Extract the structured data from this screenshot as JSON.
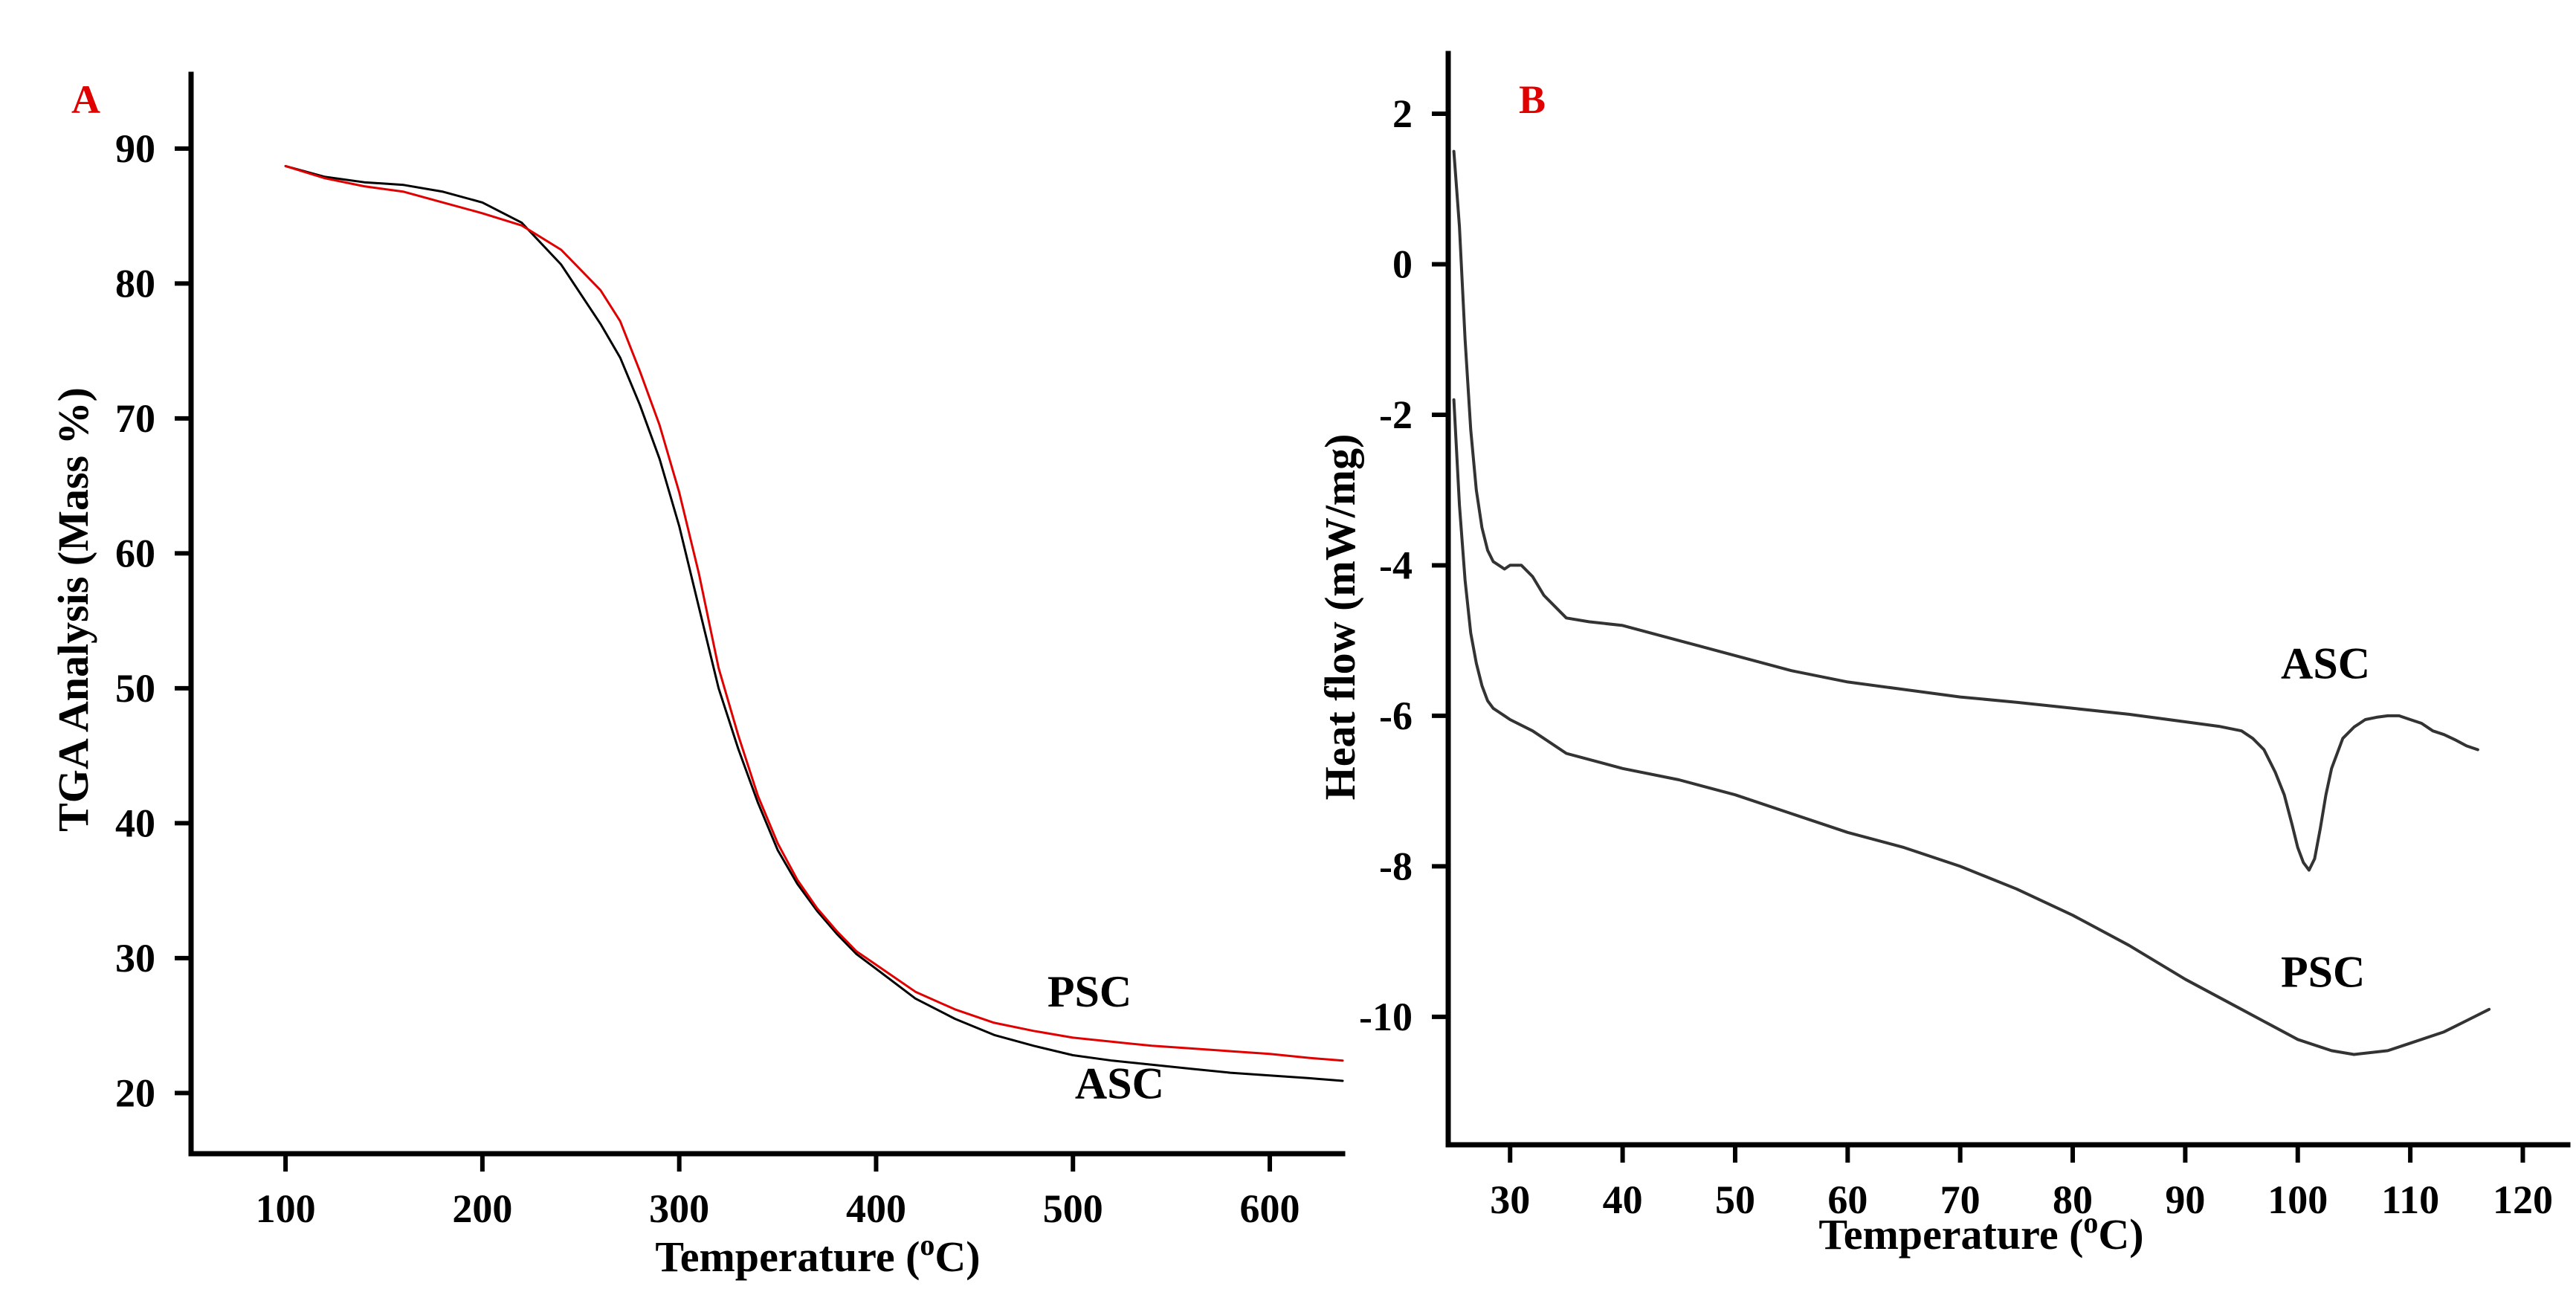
{
  "colors": {
    "asc_tga": "#000000",
    "psc_tga": "#e00000",
    "panel_label": "#e00000",
    "dsc_line": "#333333"
  },
  "chart_data": [
    {
      "id": "A",
      "type": "line",
      "panel_label": "A",
      "xlabel": "Temperature (",
      "xlabel_sup": "o",
      "xlabel_end": "C)",
      "ylabel": "TGA Analysis (Mass %)",
      "xlim": [
        52,
        637
      ],
      "ylim": [
        15.5,
        95.5
      ],
      "xticks": [
        100,
        200,
        300,
        400,
        500,
        600
      ],
      "yticks": [
        20,
        30,
        40,
        50,
        60,
        70,
        80,
        90
      ],
      "series": [
        {
          "name": "ASC",
          "color": "#000000",
          "x": [
            100,
            120,
            140,
            160,
            180,
            200,
            220,
            240,
            260,
            270,
            280,
            290,
            300,
            310,
            320,
            330,
            340,
            350,
            360,
            370,
            380,
            390,
            400,
            420,
            440,
            460,
            480,
            500,
            520,
            540,
            560,
            580,
            600,
            620,
            637
          ],
          "y": [
            88.7,
            87.9,
            87.5,
            87.3,
            86.8,
            86.0,
            84.5,
            81.4,
            77.0,
            74.5,
            71.0,
            67.0,
            62.0,
            56.0,
            50.0,
            45.5,
            41.5,
            38.0,
            35.5,
            33.5,
            31.8,
            30.3,
            29.2,
            27.0,
            25.5,
            24.3,
            23.5,
            22.8,
            22.4,
            22.1,
            21.8,
            21.5,
            21.3,
            21.1,
            20.9
          ]
        },
        {
          "name": "PSC",
          "color": "#e00000",
          "x": [
            100,
            120,
            140,
            160,
            180,
            200,
            220,
            240,
            260,
            270,
            280,
            290,
            300,
            310,
            320,
            330,
            340,
            350,
            360,
            370,
            380,
            390,
            400,
            420,
            440,
            460,
            480,
            500,
            520,
            540,
            560,
            580,
            600,
            620,
            637
          ],
          "y": [
            88.7,
            87.8,
            87.2,
            86.8,
            86.0,
            85.2,
            84.3,
            82.5,
            79.5,
            77.2,
            73.5,
            69.5,
            64.5,
            58.5,
            51.5,
            46.5,
            42.0,
            38.5,
            35.8,
            33.7,
            32.0,
            30.5,
            29.5,
            27.5,
            26.2,
            25.2,
            24.6,
            24.1,
            23.8,
            23.5,
            23.3,
            23.1,
            22.9,
            22.6,
            22.4
          ]
        }
      ],
      "annotations": [
        {
          "text": "PSC",
          "x": 487,
          "y": 26.4
        },
        {
          "text": "ASC",
          "x": 501,
          "y": 19.6
        }
      ]
    },
    {
      "id": "B",
      "type": "line",
      "panel_label": "B",
      "xlabel": "Temperature (",
      "xlabel_sup": "o",
      "xlabel_end": "C)",
      "ylabel": "Heat flow (mW/mg)",
      "xlim": [
        24.5,
        124
      ],
      "ylim": [
        -11.7,
        2.8
      ],
      "xticks": [
        30,
        40,
        50,
        60,
        70,
        80,
        90,
        100,
        110,
        120
      ],
      "yticks": [
        2,
        0,
        -2,
        -4,
        -6,
        -8,
        -10
      ],
      "series": [
        {
          "name": "ASC",
          "color": "#333333",
          "x": [
            25,
            25.5,
            26,
            26.5,
            27,
            27.5,
            28,
            28.5,
            29,
            29.5,
            30,
            31,
            32,
            33,
            35,
            37,
            40,
            45,
            50,
            55,
            60,
            65,
            70,
            75,
            80,
            85,
            90,
            93,
            95,
            96,
            97,
            98,
            98.8,
            99.5,
            100,
            100.5,
            101,
            101.5,
            102,
            102.5,
            103,
            104,
            105,
            106,
            107,
            108,
            109,
            110,
            111,
            112,
            113,
            114,
            115,
            116
          ],
          "y": [
            1.5,
            0.5,
            -1.0,
            -2.2,
            -3.0,
            -3.5,
            -3.8,
            -3.95,
            -4.0,
            -4.05,
            -4.0,
            -4.0,
            -4.15,
            -4.4,
            -4.7,
            -4.75,
            -4.8,
            -5.0,
            -5.2,
            -5.4,
            -5.55,
            -5.65,
            -5.75,
            -5.82,
            -5.9,
            -5.98,
            -6.08,
            -6.14,
            -6.2,
            -6.3,
            -6.45,
            -6.75,
            -7.05,
            -7.45,
            -7.75,
            -7.95,
            -8.05,
            -7.9,
            -7.5,
            -7.05,
            -6.7,
            -6.3,
            -6.15,
            -6.05,
            -6.02,
            -6.0,
            -6.0,
            -6.05,
            -6.1,
            -6.2,
            -6.25,
            -6.32,
            -6.4,
            -6.45
          ]
        },
        {
          "name": "PSC",
          "color": "#333333",
          "x": [
            25,
            25.5,
            26,
            26.5,
            27,
            27.5,
            28,
            28.5,
            29,
            29.5,
            30,
            32,
            35,
            40,
            45,
            50,
            55,
            60,
            65,
            70,
            75,
            80,
            85,
            90,
            95,
            100,
            103,
            105,
            108,
            110,
            113,
            115,
            117
          ],
          "y": [
            -1.8,
            -3.2,
            -4.2,
            -4.9,
            -5.3,
            -5.6,
            -5.8,
            -5.9,
            -5.95,
            -6.0,
            -6.05,
            -6.2,
            -6.5,
            -6.7,
            -6.85,
            -7.05,
            -7.3,
            -7.55,
            -7.75,
            -8.0,
            -8.3,
            -8.65,
            -9.05,
            -9.5,
            -9.9,
            -10.3,
            -10.45,
            -10.5,
            -10.45,
            -10.35,
            -10.2,
            -10.05,
            -9.9
          ]
        }
      ],
      "annotations": [
        {
          "text": "ASC",
          "x": 98.5,
          "y": -5.5
        },
        {
          "text": "PSC",
          "x": 98.5,
          "y": -9.6
        }
      ]
    }
  ]
}
